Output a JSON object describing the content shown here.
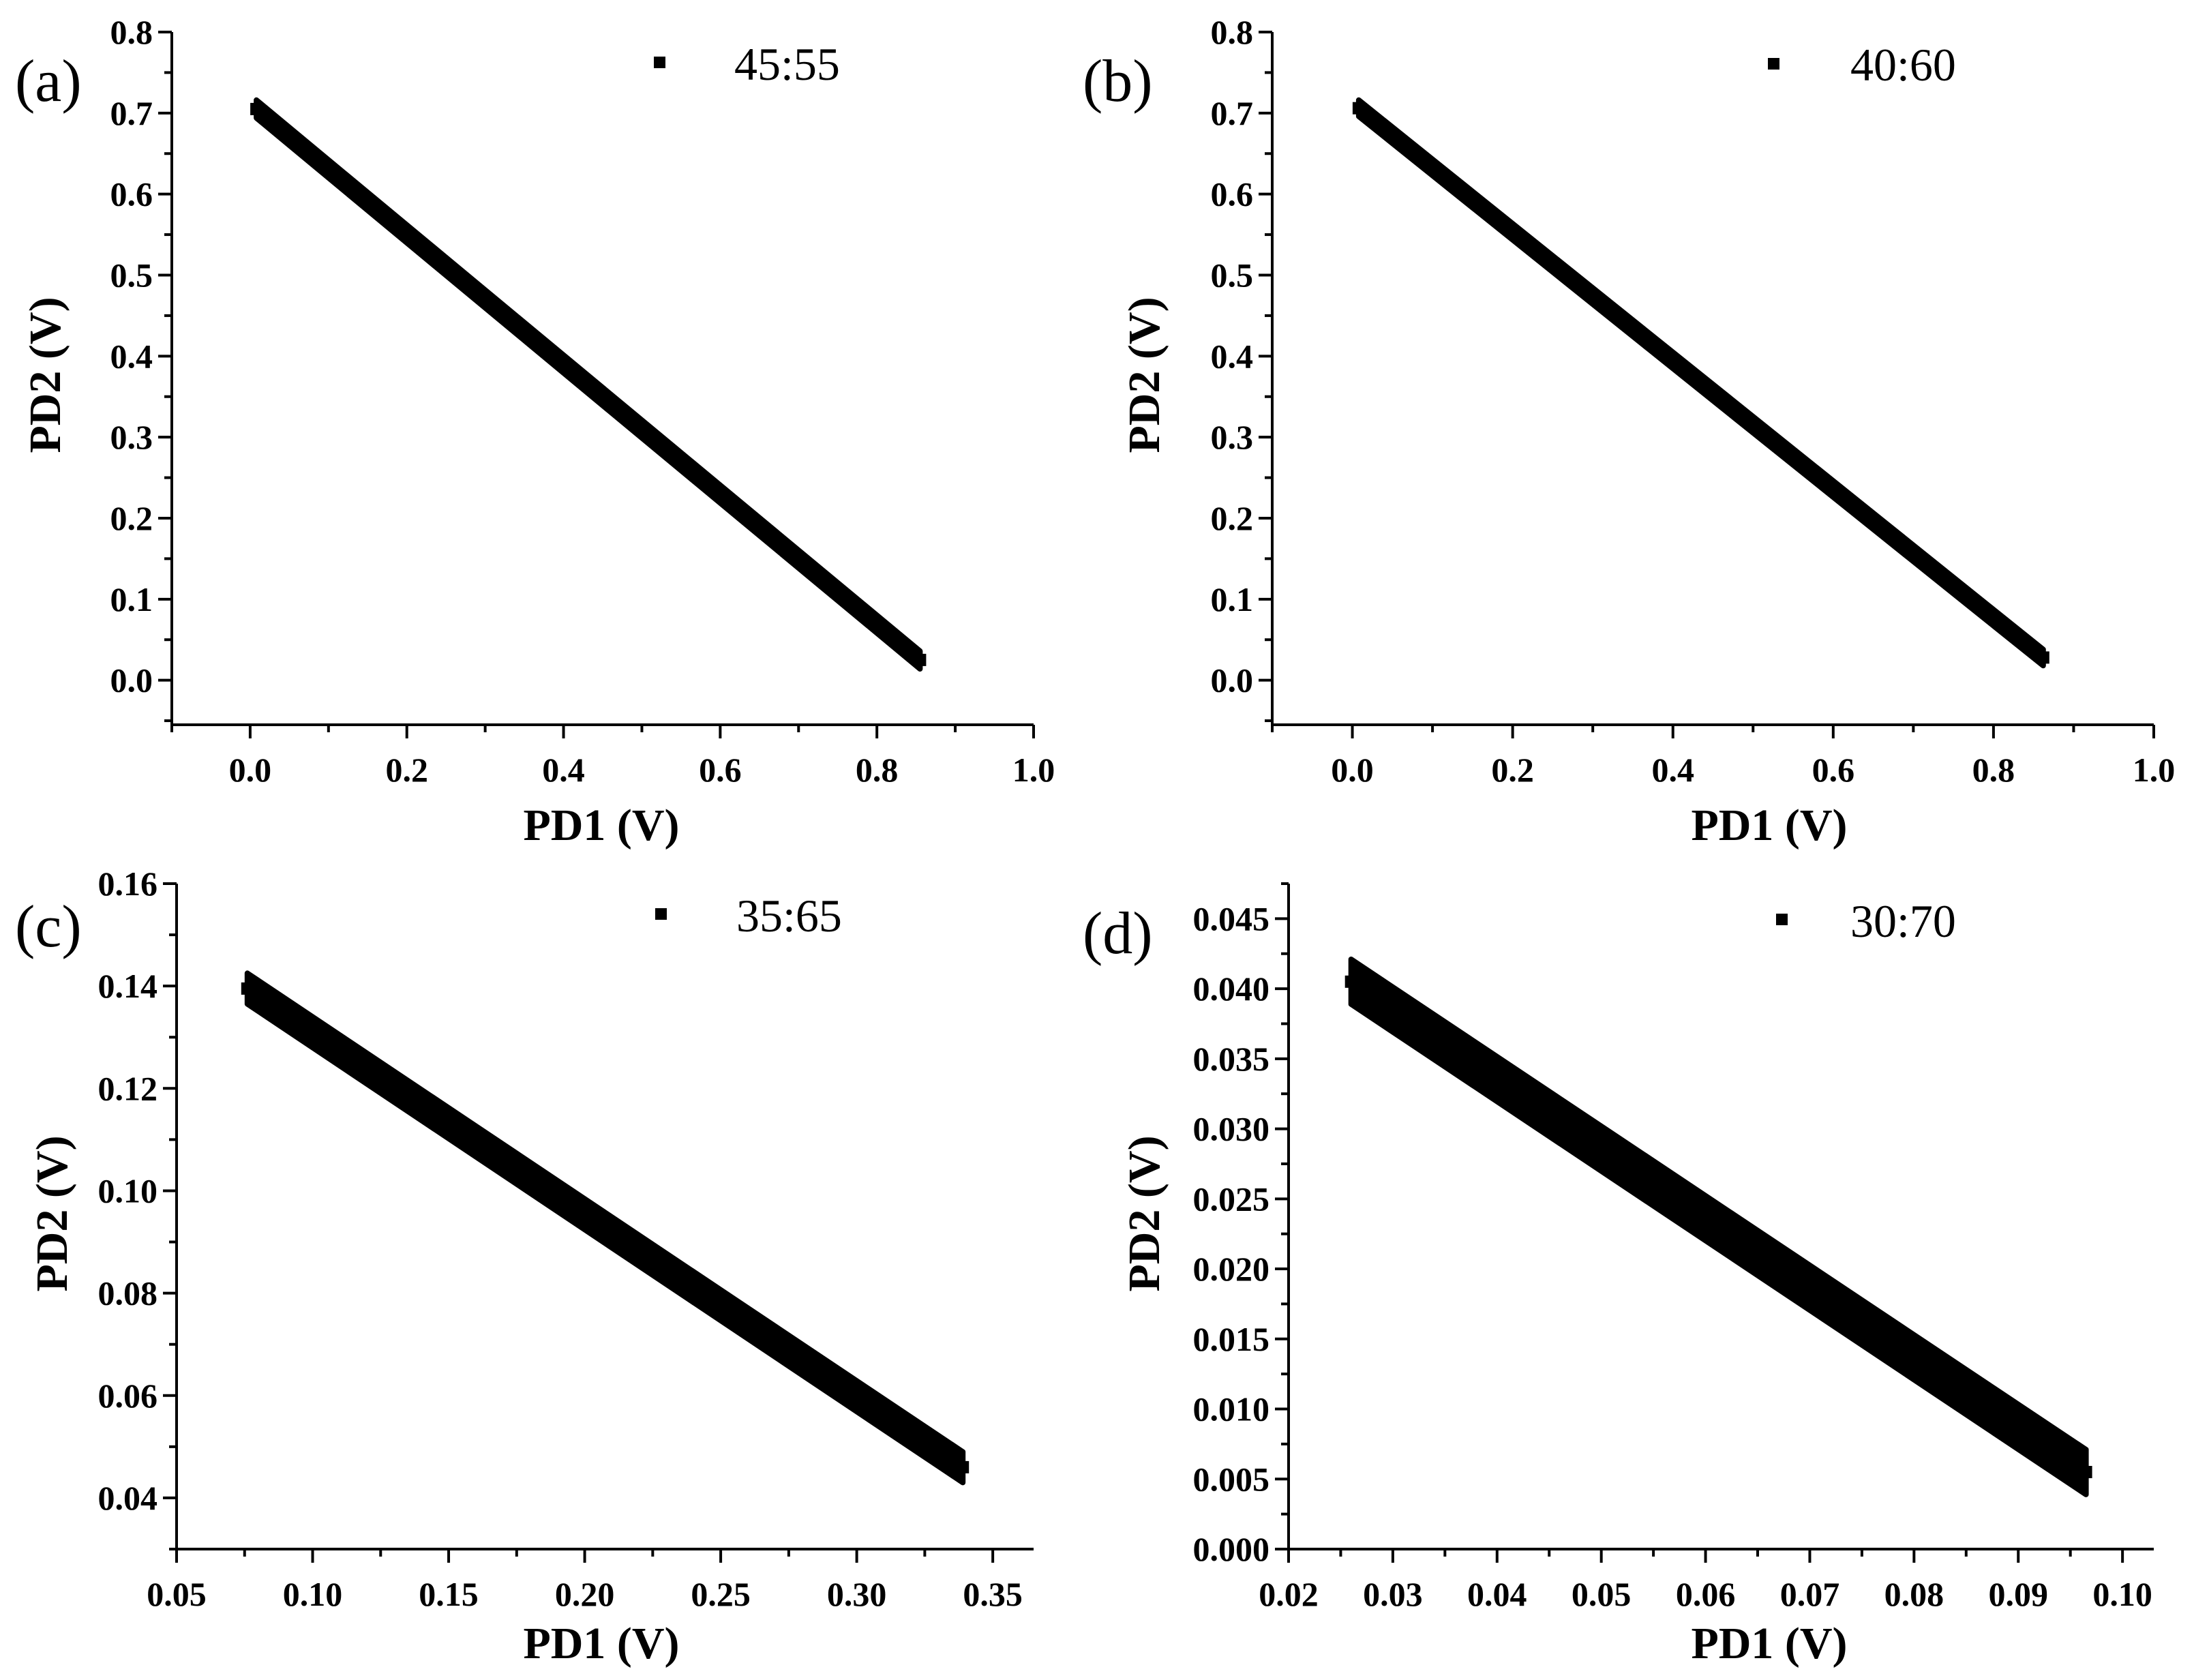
{
  "chart_data": [
    {
      "type": "scatter",
      "panel": "(a)",
      "legend": "45:55",
      "xlabel": "PD1 (V)",
      "ylabel": "PD2 (V)",
      "xlim": [
        -0.1,
        1.0
      ],
      "ylim": [
        -0.055,
        0.8
      ],
      "xticks": [
        0.0,
        0.2,
        0.4,
        0.6,
        0.8,
        1.0
      ],
      "yticks": [
        0.0,
        0.1,
        0.2,
        0.3,
        0.4,
        0.5,
        0.6,
        0.7,
        0.8
      ],
      "xticklabels": [
        "0.0",
        "0.2",
        "0.4",
        "0.6",
        "0.8",
        "1.0"
      ],
      "yticklabels": [
        "0.0",
        "0.1",
        "0.2",
        "0.3",
        "0.4",
        "0.5",
        "0.6",
        "0.7",
        "0.8"
      ],
      "x_minor": 0.1,
      "y_minor": 0.05,
      "band": {
        "start": [
          0.008,
          0.705
        ],
        "end": [
          0.855,
          0.025
        ],
        "thickness_y": 0.022
      },
      "series": [
        {
          "name": "45:55",
          "x": [
            0.008,
            0.1,
            0.2,
            0.3,
            0.4,
            0.5,
            0.6,
            0.7,
            0.8,
            0.855
          ],
          "y": [
            0.705,
            0.63,
            0.55,
            0.47,
            0.39,
            0.31,
            0.23,
            0.15,
            0.07,
            0.025
          ]
        }
      ]
    },
    {
      "type": "scatter",
      "panel": "(b)",
      "legend": "40:60",
      "xlabel": "PD1 (V)",
      "ylabel": "PD2 (V)",
      "xlim": [
        -0.1,
        1.0
      ],
      "ylim": [
        -0.055,
        0.8
      ],
      "xticks": [
        0.0,
        0.2,
        0.4,
        0.6,
        0.8,
        1.0
      ],
      "yticks": [
        0.0,
        0.1,
        0.2,
        0.3,
        0.4,
        0.5,
        0.6,
        0.7,
        0.8
      ],
      "xticklabels": [
        "0.0",
        "0.2",
        "0.4",
        "0.6",
        "0.8",
        "1.0"
      ],
      "yticklabels": [
        "0.0",
        "0.1",
        "0.2",
        "0.3",
        "0.4",
        "0.5",
        "0.6",
        "0.7",
        "0.8"
      ],
      "x_minor": 0.1,
      "y_minor": 0.05,
      "band": {
        "start": [
          0.008,
          0.706
        ],
        "end": [
          0.862,
          0.028
        ],
        "thickness_y": 0.02
      },
      "series": [
        {
          "name": "40:60",
          "x": [
            0.008,
            0.1,
            0.2,
            0.3,
            0.4,
            0.5,
            0.6,
            0.7,
            0.8,
            0.862
          ],
          "y": [
            0.706,
            0.633,
            0.554,
            0.474,
            0.395,
            0.315,
            0.236,
            0.157,
            0.078,
            0.028
          ]
        }
      ]
    },
    {
      "type": "scatter",
      "panel": "(c)",
      "legend": "35:65",
      "xlabel": "PD1 (V)",
      "ylabel": "PD2 (V)",
      "xlim": [
        0.05,
        0.365
      ],
      "ylim": [
        0.03,
        0.16
      ],
      "xticks": [
        0.05,
        0.1,
        0.15,
        0.2,
        0.25,
        0.3,
        0.35
      ],
      "yticks": [
        0.04,
        0.06,
        0.08,
        0.1,
        0.12,
        0.14,
        0.16
      ],
      "xticklabels": [
        "0.05",
        "0.10",
        "0.15",
        "0.20",
        "0.25",
        "0.30",
        "0.35"
      ],
      "yticklabels": [
        "0.04",
        "0.06",
        "0.08",
        "0.10",
        "0.12",
        "0.14",
        "0.16"
      ],
      "x_minor": 0.025,
      "y_minor": 0.01,
      "band": {
        "start": [
          0.076,
          0.1395
        ],
        "end": [
          0.339,
          0.046
        ],
        "thickness_y": 0.006
      },
      "series": [
        {
          "name": "35:65",
          "x": [
            0.076,
            0.1,
            0.15,
            0.2,
            0.25,
            0.3,
            0.339
          ],
          "y": [
            0.1395,
            0.131,
            0.113,
            0.0955,
            0.0775,
            0.06,
            0.046
          ]
        }
      ]
    },
    {
      "type": "scatter",
      "panel": "(d)",
      "legend": "30:70",
      "xlabel": "PD1 (V)",
      "ylabel": "PD2 (V)",
      "xlim": [
        0.02,
        0.103
      ],
      "ylim": [
        0.0,
        0.0475
      ],
      "xticks": [
        0.02,
        0.03,
        0.04,
        0.05,
        0.06,
        0.07,
        0.08,
        0.09,
        0.1
      ],
      "yticks": [
        0.0,
        0.005,
        0.01,
        0.015,
        0.02,
        0.025,
        0.03,
        0.035,
        0.04,
        0.045
      ],
      "xticklabels": [
        "0.02",
        "0.03",
        "0.04",
        "0.05",
        "0.06",
        "0.07",
        "0.08",
        "0.09",
        "0.10"
      ],
      "yticklabels": [
        "0.000",
        "0.005",
        "0.010",
        "0.015",
        "0.020",
        "0.025",
        "0.030",
        "0.035",
        "0.040",
        "0.045"
      ],
      "x_minor": 0.005,
      "y_minor": 0.0025,
      "band": {
        "start": [
          0.026,
          0.0405
        ],
        "end": [
          0.0965,
          0.0055
        ],
        "thickness_y": 0.0032
      },
      "series": [
        {
          "name": "30:70",
          "x": [
            0.026,
            0.04,
            0.05,
            0.06,
            0.07,
            0.08,
            0.09,
            0.0965
          ],
          "y": [
            0.0405,
            0.0336,
            0.0285,
            0.0236,
            0.0186,
            0.0137,
            0.0088,
            0.0055
          ]
        }
      ]
    }
  ]
}
